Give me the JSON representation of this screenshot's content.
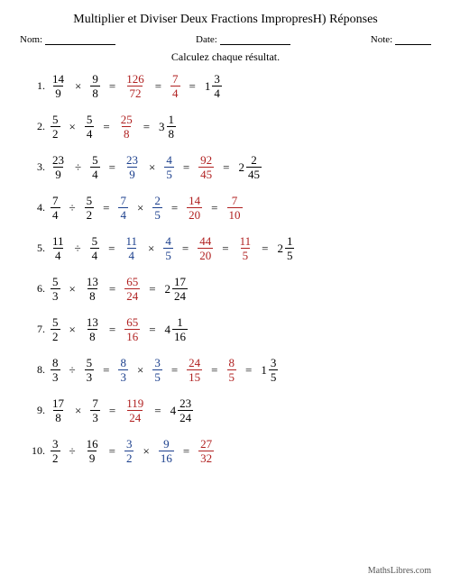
{
  "title": "Multiplier et Diviser Deux Fractions ImpropresH) Réponses",
  "header": {
    "name_label": "Nom:",
    "date_label": "Date:",
    "note_label": "Note:"
  },
  "instruction": "Calculez chaque résultat.",
  "colors": {
    "black": "#000000",
    "blue": "#1a3e8c",
    "red": "#b02020"
  },
  "footer": "MathsLibres.com",
  "problems": [
    {
      "n": "1.",
      "steps": [
        {
          "t": "frac",
          "num": "14",
          "den": "9",
          "c": "black"
        },
        {
          "t": "op",
          "v": "×"
        },
        {
          "t": "frac",
          "num": "9",
          "den": "8",
          "c": "black"
        },
        {
          "t": "op",
          "v": "="
        },
        {
          "t": "frac",
          "num": "126",
          "den": "72",
          "c": "red"
        },
        {
          "t": "op",
          "v": "="
        },
        {
          "t": "frac",
          "num": "7",
          "den": "4",
          "c": "red"
        },
        {
          "t": "op",
          "v": "="
        },
        {
          "t": "mixed",
          "w": "1",
          "num": "3",
          "den": "4",
          "c": "black"
        }
      ]
    },
    {
      "n": "2.",
      "steps": [
        {
          "t": "frac",
          "num": "5",
          "den": "2",
          "c": "black"
        },
        {
          "t": "op",
          "v": "×"
        },
        {
          "t": "frac",
          "num": "5",
          "den": "4",
          "c": "black"
        },
        {
          "t": "op",
          "v": "="
        },
        {
          "t": "frac",
          "num": "25",
          "den": "8",
          "c": "red"
        },
        {
          "t": "op",
          "v": "="
        },
        {
          "t": "mixed",
          "w": "3",
          "num": "1",
          "den": "8",
          "c": "black"
        }
      ]
    },
    {
      "n": "3.",
      "steps": [
        {
          "t": "frac",
          "num": "23",
          "den": "9",
          "c": "black"
        },
        {
          "t": "op",
          "v": "÷"
        },
        {
          "t": "frac",
          "num": "5",
          "den": "4",
          "c": "black"
        },
        {
          "t": "op",
          "v": "="
        },
        {
          "t": "frac",
          "num": "23",
          "den": "9",
          "c": "blue"
        },
        {
          "t": "op",
          "v": "×"
        },
        {
          "t": "frac",
          "num": "4",
          "den": "5",
          "c": "blue"
        },
        {
          "t": "op",
          "v": "="
        },
        {
          "t": "frac",
          "num": "92",
          "den": "45",
          "c": "red"
        },
        {
          "t": "op",
          "v": "="
        },
        {
          "t": "mixed",
          "w": "2",
          "num": "2",
          "den": "45",
          "c": "black"
        }
      ]
    },
    {
      "n": "4.",
      "steps": [
        {
          "t": "frac",
          "num": "7",
          "den": "4",
          "c": "black"
        },
        {
          "t": "op",
          "v": "÷"
        },
        {
          "t": "frac",
          "num": "5",
          "den": "2",
          "c": "black"
        },
        {
          "t": "op",
          "v": "="
        },
        {
          "t": "frac",
          "num": "7",
          "den": "4",
          "c": "blue"
        },
        {
          "t": "op",
          "v": "×"
        },
        {
          "t": "frac",
          "num": "2",
          "den": "5",
          "c": "blue"
        },
        {
          "t": "op",
          "v": "="
        },
        {
          "t": "frac",
          "num": "14",
          "den": "20",
          "c": "red"
        },
        {
          "t": "op",
          "v": "="
        },
        {
          "t": "frac",
          "num": "7",
          "den": "10",
          "c": "red"
        }
      ]
    },
    {
      "n": "5.",
      "steps": [
        {
          "t": "frac",
          "num": "11",
          "den": "4",
          "c": "black"
        },
        {
          "t": "op",
          "v": "÷"
        },
        {
          "t": "frac",
          "num": "5",
          "den": "4",
          "c": "black"
        },
        {
          "t": "op",
          "v": "="
        },
        {
          "t": "frac",
          "num": "11",
          "den": "4",
          "c": "blue"
        },
        {
          "t": "op",
          "v": "×"
        },
        {
          "t": "frac",
          "num": "4",
          "den": "5",
          "c": "blue"
        },
        {
          "t": "op",
          "v": "="
        },
        {
          "t": "frac",
          "num": "44",
          "den": "20",
          "c": "red"
        },
        {
          "t": "op",
          "v": "="
        },
        {
          "t": "frac",
          "num": "11",
          "den": "5",
          "c": "red"
        },
        {
          "t": "op",
          "v": "="
        },
        {
          "t": "mixed",
          "w": "2",
          "num": "1",
          "den": "5",
          "c": "black"
        }
      ]
    },
    {
      "n": "6.",
      "steps": [
        {
          "t": "frac",
          "num": "5",
          "den": "3",
          "c": "black"
        },
        {
          "t": "op",
          "v": "×"
        },
        {
          "t": "frac",
          "num": "13",
          "den": "8",
          "c": "black"
        },
        {
          "t": "op",
          "v": "="
        },
        {
          "t": "frac",
          "num": "65",
          "den": "24",
          "c": "red"
        },
        {
          "t": "op",
          "v": "="
        },
        {
          "t": "mixed",
          "w": "2",
          "num": "17",
          "den": "24",
          "c": "black"
        }
      ]
    },
    {
      "n": "7.",
      "steps": [
        {
          "t": "frac",
          "num": "5",
          "den": "2",
          "c": "black"
        },
        {
          "t": "op",
          "v": "×"
        },
        {
          "t": "frac",
          "num": "13",
          "den": "8",
          "c": "black"
        },
        {
          "t": "op",
          "v": "="
        },
        {
          "t": "frac",
          "num": "65",
          "den": "16",
          "c": "red"
        },
        {
          "t": "op",
          "v": "="
        },
        {
          "t": "mixed",
          "w": "4",
          "num": "1",
          "den": "16",
          "c": "black"
        }
      ]
    },
    {
      "n": "8.",
      "steps": [
        {
          "t": "frac",
          "num": "8",
          "den": "3",
          "c": "black"
        },
        {
          "t": "op",
          "v": "÷"
        },
        {
          "t": "frac",
          "num": "5",
          "den": "3",
          "c": "black"
        },
        {
          "t": "op",
          "v": "="
        },
        {
          "t": "frac",
          "num": "8",
          "den": "3",
          "c": "blue"
        },
        {
          "t": "op",
          "v": "×"
        },
        {
          "t": "frac",
          "num": "3",
          "den": "5",
          "c": "blue"
        },
        {
          "t": "op",
          "v": "="
        },
        {
          "t": "frac",
          "num": "24",
          "den": "15",
          "c": "red"
        },
        {
          "t": "op",
          "v": "="
        },
        {
          "t": "frac",
          "num": "8",
          "den": "5",
          "c": "red"
        },
        {
          "t": "op",
          "v": "="
        },
        {
          "t": "mixed",
          "w": "1",
          "num": "3",
          "den": "5",
          "c": "black"
        }
      ]
    },
    {
      "n": "9.",
      "steps": [
        {
          "t": "frac",
          "num": "17",
          "den": "8",
          "c": "black"
        },
        {
          "t": "op",
          "v": "×"
        },
        {
          "t": "frac",
          "num": "7",
          "den": "3",
          "c": "black"
        },
        {
          "t": "op",
          "v": "="
        },
        {
          "t": "frac",
          "num": "119",
          "den": "24",
          "c": "red"
        },
        {
          "t": "op",
          "v": "="
        },
        {
          "t": "mixed",
          "w": "4",
          "num": "23",
          "den": "24",
          "c": "black"
        }
      ]
    },
    {
      "n": "10.",
      "steps": [
        {
          "t": "frac",
          "num": "3",
          "den": "2",
          "c": "black"
        },
        {
          "t": "op",
          "v": "÷"
        },
        {
          "t": "frac",
          "num": "16",
          "den": "9",
          "c": "black"
        },
        {
          "t": "op",
          "v": "="
        },
        {
          "t": "frac",
          "num": "3",
          "den": "2",
          "c": "blue"
        },
        {
          "t": "op",
          "v": "×"
        },
        {
          "t": "frac",
          "num": "9",
          "den": "16",
          "c": "blue"
        },
        {
          "t": "op",
          "v": "="
        },
        {
          "t": "frac",
          "num": "27",
          "den": "32",
          "c": "red"
        }
      ]
    }
  ]
}
